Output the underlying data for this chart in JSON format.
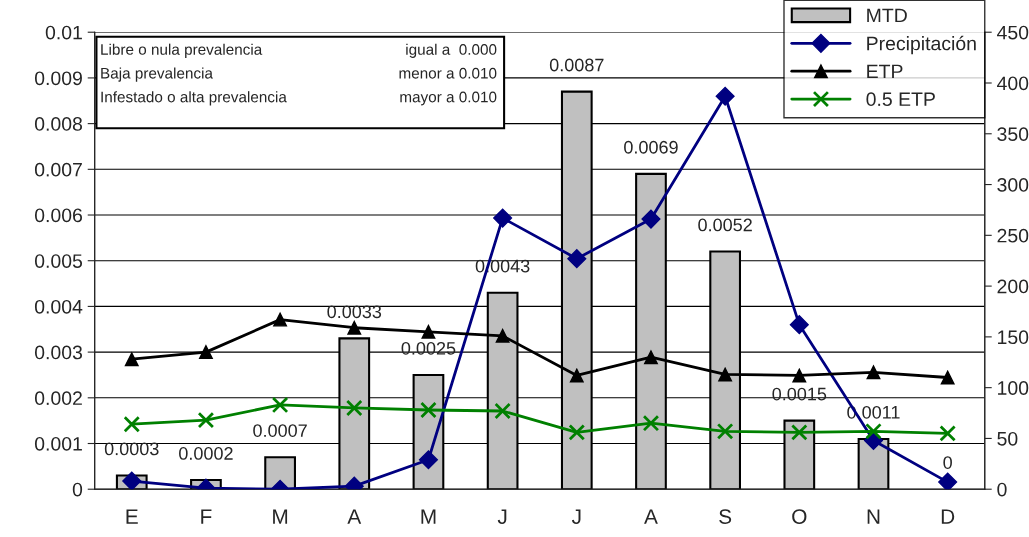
{
  "chart_data": {
    "type": "bar",
    "categories": [
      "E",
      "F",
      "M",
      "A",
      "M",
      "J",
      "J",
      "A",
      "S",
      "O",
      "N",
      "D"
    ],
    "series": [
      {
        "name": "MTD",
        "color": "#c0c0c0",
        "values": [
          0.0003,
          0.0002,
          0.0007,
          0.0033,
          0.0025,
          0.0043,
          0.0087,
          0.0069,
          0.0052,
          0.0015,
          0.0011,
          0
        ],
        "value_labels": [
          "0.0003",
          "0.0002",
          "0.0007",
          "0.0033",
          "0.0025",
          "0.0043",
          "0.0087",
          "0.0069",
          "0.0052",
          "0.0015",
          "0.0011",
          "0"
        ]
      },
      {
        "name": "Precipitación",
        "type": "line",
        "axis": "y2",
        "color": "#000080",
        "marker": "diamond",
        "values": [
          8,
          1,
          0,
          3,
          29,
          267,
          227,
          266,
          387,
          162,
          48,
          7
        ]
      },
      {
        "name": "ETP",
        "type": "line",
        "axis": "y2",
        "color": "#000000",
        "marker": "triangle",
        "values": [
          128,
          135,
          167,
          159,
          155,
          151,
          112,
          130,
          113,
          112,
          115,
          110
        ]
      },
      {
        "name": "0.5 ETP",
        "type": "line",
        "axis": "y2",
        "color": "#008000",
        "marker": "cross",
        "values": [
          64,
          68,
          83,
          80,
          78,
          77,
          56,
          65,
          57,
          56,
          57,
          55
        ]
      }
    ],
    "ylim": [
      0,
      0.01
    ],
    "yticks": [
      0,
      0.001,
      0.002,
      0.003,
      0.004,
      0.005,
      0.006,
      0.007,
      0.008,
      0.009,
      0.01
    ],
    "y2lim": [
      0,
      450
    ],
    "y2ticks": [
      0,
      50,
      100,
      150,
      200,
      250,
      300,
      350,
      400,
      450
    ],
    "grid": "y",
    "legend": "top right",
    "annotations": [
      "Libre o nula prevalencia",
      "igual a  0.000",
      "Baja prevalencia",
      "menor a 0.010",
      "Infestado o alta prevalencia",
      "mayor a 0.010"
    ]
  }
}
